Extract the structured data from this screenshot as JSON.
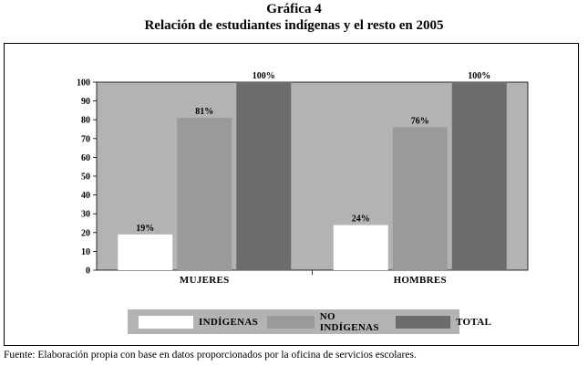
{
  "heading": {
    "number": "Gráfica 4",
    "title": "Relación de estudiantes indígenas y el resto en 2005"
  },
  "source_note": "Fuente: Elaboración propia con base en datos proporcionados por la oficina de servicios escolares.",
  "colors": {
    "plot_background": "#b3b3b3",
    "indigenas": "#ffffff",
    "no_indigenas": "#9a9a9a",
    "total": "#6c6c6c"
  },
  "chart_data": {
    "type": "bar",
    "categories": [
      "MUJERES",
      "HOMBRES"
    ],
    "series": [
      {
        "name": "INDÍGENAS",
        "values": [
          19,
          24
        ],
        "labels": [
          "19%",
          "24%"
        ]
      },
      {
        "name": "NO INDÍGENAS",
        "values": [
          81,
          76
        ],
        "labels": [
          "81%",
          "76%"
        ]
      },
      {
        "name": "TOTAL",
        "values": [
          100,
          100
        ],
        "labels": [
          "100%",
          "100%"
        ]
      }
    ],
    "yticks": [
      "0",
      "10",
      "20",
      "30",
      "40",
      "50",
      "60",
      "70",
      "80",
      "90",
      "100"
    ],
    "ylim": [
      0,
      100
    ],
    "grid": false,
    "legend_position": "bottom"
  }
}
